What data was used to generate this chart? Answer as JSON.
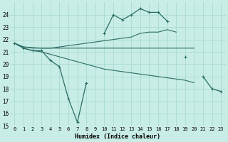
{
  "xlabel": "Humidex (Indice chaleur)",
  "x": [
    0,
    1,
    2,
    3,
    4,
    5,
    6,
    7,
    8,
    9,
    10,
    11,
    12,
    13,
    14,
    15,
    16,
    17,
    18,
    19,
    20,
    21,
    22,
    23
  ],
  "line_volatile": [
    21.7,
    21.3,
    21.1,
    21.1,
    20.3,
    19.8,
    17.2,
    15.3,
    18.5,
    null,
    null,
    null,
    null,
    null,
    null,
    null,
    null,
    null,
    null,
    20.6,
    null,
    19.0,
    18.0,
    17.8
  ],
  "line_upper": [
    null,
    null,
    null,
    null,
    null,
    null,
    null,
    null,
    null,
    null,
    22.5,
    24.0,
    23.6,
    24.0,
    24.5,
    24.2,
    24.2,
    23.5,
    null,
    null,
    null,
    null,
    null,
    null
  ],
  "line_rise": [
    21.7,
    21.4,
    21.3,
    21.3,
    21.3,
    21.4,
    21.5,
    21.6,
    21.7,
    21.8,
    21.9,
    22.0,
    22.1,
    22.2,
    22.5,
    22.6,
    22.6,
    22.8,
    22.6,
    null,
    null,
    null,
    null,
    null
  ],
  "line_flat": [
    21.7,
    21.4,
    21.35,
    21.3,
    21.3,
    21.3,
    21.3,
    21.3,
    21.3,
    21.3,
    21.3,
    21.3,
    21.3,
    21.3,
    21.3,
    21.3,
    21.3,
    21.3,
    21.3,
    21.3,
    21.3,
    null,
    null,
    null
  ],
  "line_fall": [
    21.7,
    21.3,
    21.1,
    21.0,
    20.8,
    20.6,
    20.4,
    20.2,
    20.0,
    19.8,
    19.6,
    19.5,
    19.4,
    19.3,
    19.2,
    19.1,
    19.0,
    18.9,
    18.8,
    18.7,
    18.5,
    null,
    null,
    null
  ],
  "bg_color": "#c8ece6",
  "grid_color": "#a0d8cc",
  "line_color": "#2a6e65",
  "ylim": [
    15,
    25
  ],
  "xlim": [
    -0.5,
    23.5
  ],
  "yticks": [
    15,
    16,
    17,
    18,
    19,
    20,
    21,
    22,
    23,
    24
  ],
  "xticks": [
    0,
    1,
    2,
    3,
    4,
    5,
    6,
    7,
    8,
    9,
    10,
    11,
    12,
    13,
    14,
    15,
    16,
    17,
    18,
    19,
    20,
    21,
    22,
    23
  ]
}
